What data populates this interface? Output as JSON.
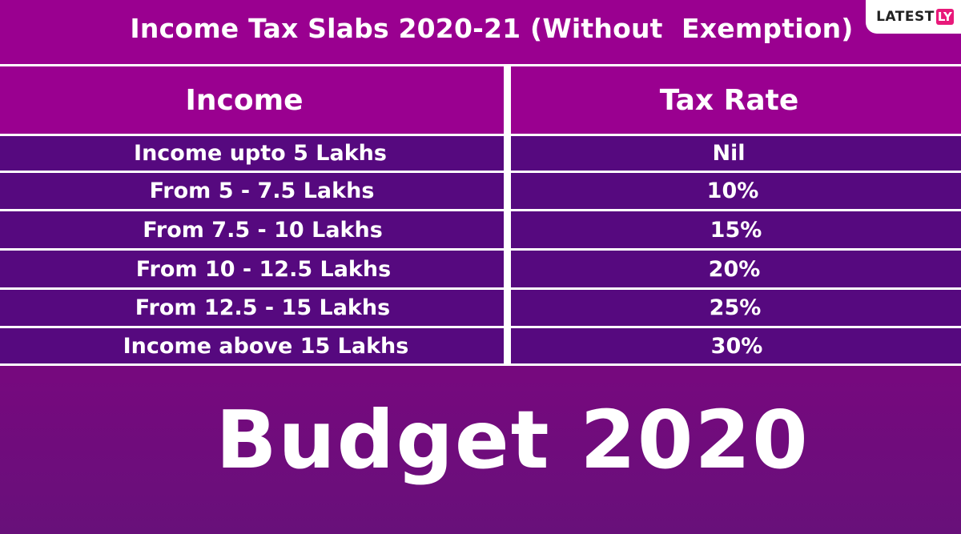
{
  "title": "Income Tax Slabs 2020-21 (Without  Exemption)",
  "logo": {
    "main": "LATEST",
    "accent": "LY"
  },
  "table": {
    "headers": [
      "Income",
      "Tax Rate"
    ],
    "rows": [
      {
        "income": "Income upto 5 Lakhs",
        "rate": "Nil"
      },
      {
        "income": "From 5 - 7.5 Lakhs",
        "rate": "10%"
      },
      {
        "income": "From 7.5 - 10 Lakhs",
        "rate": "15%"
      },
      {
        "income": "From 10 - 12.5 Lakhs",
        "rate": "20%"
      },
      {
        "income": "From 12.5 - 15 Lakhs",
        "rate": "25%"
      },
      {
        "income": "Income above 15 Lakhs",
        "rate": "30%"
      }
    ]
  },
  "banner": "Budget 2020",
  "colors": {
    "magenta": "#9a0090",
    "row_purple": "#56097f",
    "logo_accent": "#e8197a",
    "text": "#ffffff"
  }
}
